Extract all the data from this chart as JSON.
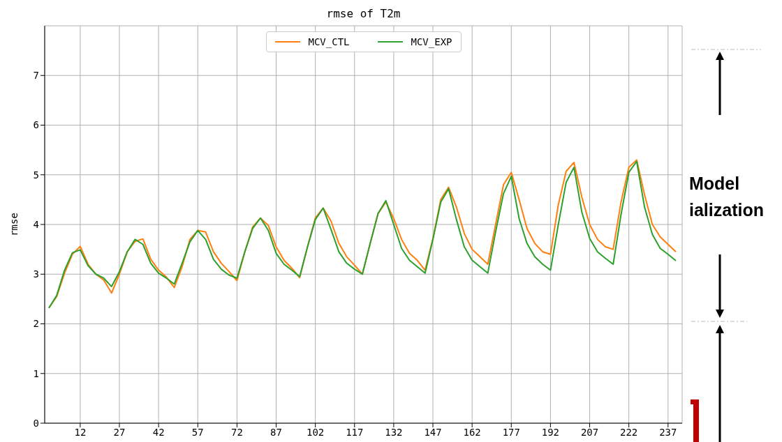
{
  "chart_data": {
    "type": "line",
    "title": "rmse of T2m",
    "ylabel": "rmse",
    "x": [
      0,
      3,
      6,
      9,
      12,
      15,
      18,
      21,
      24,
      27,
      30,
      33,
      36,
      39,
      42,
      45,
      48,
      51,
      54,
      57,
      60,
      63,
      66,
      69,
      72,
      75,
      78,
      81,
      84,
      87,
      90,
      93,
      96,
      99,
      102,
      105,
      108,
      111,
      114,
      117,
      120,
      123,
      126,
      129,
      132,
      135,
      138,
      141,
      144,
      147,
      150,
      153,
      156,
      159,
      162,
      165,
      168,
      171,
      174,
      177,
      180,
      183,
      186,
      189,
      192,
      195,
      198,
      201,
      204,
      207,
      210,
      213,
      216,
      219,
      222,
      225,
      228,
      231,
      234,
      237,
      240
    ],
    "series": [
      {
        "name": "MCV_CTL",
        "color": "#ff7f0e",
        "values": [
          2.32,
          2.55,
          3.02,
          3.4,
          3.56,
          3.2,
          3.0,
          2.88,
          2.62,
          3.0,
          3.45,
          3.66,
          3.71,
          3.3,
          3.08,
          2.94,
          2.73,
          3.15,
          3.7,
          3.88,
          3.85,
          3.45,
          3.22,
          3.05,
          2.87,
          3.45,
          3.95,
          4.13,
          3.98,
          3.55,
          3.28,
          3.12,
          2.93,
          3.55,
          4.13,
          4.33,
          4.07,
          3.62,
          3.35,
          3.18,
          3.0,
          3.62,
          4.22,
          4.45,
          4.12,
          3.7,
          3.42,
          3.28,
          3.08,
          3.72,
          4.5,
          4.75,
          4.35,
          3.82,
          3.5,
          3.35,
          3.2,
          4.0,
          4.8,
          5.05,
          4.5,
          3.92,
          3.62,
          3.45,
          3.4,
          4.4,
          5.07,
          5.25,
          4.55,
          4.0,
          3.7,
          3.55,
          3.5,
          4.45,
          5.15,
          5.3,
          4.6,
          4.0,
          3.75,
          3.6,
          3.45
        ]
      },
      {
        "name": "MCV_EXP",
        "color": "#2ca02c",
        "values": [
          2.32,
          2.57,
          3.08,
          3.43,
          3.49,
          3.17,
          3.0,
          2.92,
          2.75,
          3.05,
          3.45,
          3.7,
          3.6,
          3.22,
          3.02,
          2.92,
          2.8,
          3.22,
          3.65,
          3.88,
          3.7,
          3.3,
          3.1,
          2.98,
          2.92,
          3.45,
          3.92,
          4.13,
          3.88,
          3.42,
          3.2,
          3.08,
          2.95,
          3.55,
          4.1,
          4.33,
          3.9,
          3.45,
          3.22,
          3.1,
          3.0,
          3.62,
          4.22,
          4.48,
          4.0,
          3.52,
          3.28,
          3.15,
          3.02,
          3.7,
          4.45,
          4.72,
          4.1,
          3.55,
          3.28,
          3.15,
          3.02,
          3.85,
          4.62,
          4.97,
          4.12,
          3.62,
          3.35,
          3.2,
          3.08,
          4.0,
          4.85,
          5.15,
          4.25,
          3.72,
          3.45,
          3.32,
          3.2,
          4.2,
          5.05,
          5.27,
          4.35,
          3.8,
          3.52,
          3.4,
          3.27
        ]
      }
    ],
    "xlim": [
      -1.6,
      242.4
    ],
    "xticks": [
      12,
      27,
      42,
      57,
      72,
      87,
      102,
      117,
      132,
      147,
      162,
      177,
      192,
      207,
      222,
      237
    ],
    "ylim": [
      0,
      8
    ],
    "yticks": [
      0,
      1,
      2,
      3,
      4,
      5,
      6,
      7
    ],
    "grid": true,
    "legend": "top",
    "marker": "none",
    "line_style": "solid",
    "annotations": [
      "Model",
      "ialization"
    ]
  }
}
